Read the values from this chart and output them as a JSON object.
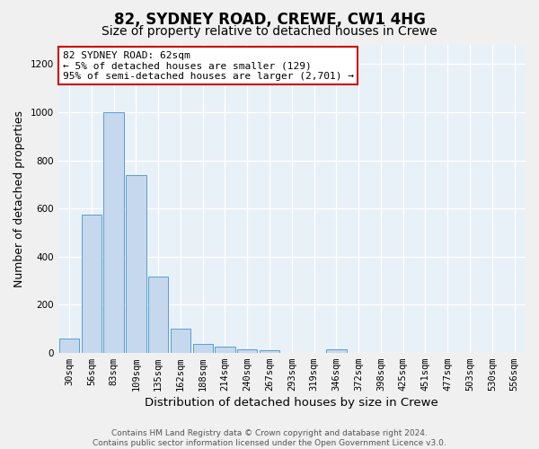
{
  "title": "82, SYDNEY ROAD, CREWE, CW1 4HG",
  "subtitle": "Size of property relative to detached houses in Crewe",
  "xlabel": "Distribution of detached houses by size in Crewe",
  "ylabel": "Number of detached properties",
  "bar_color": "#c5d8ed",
  "bar_edge_color": "#5a9ecf",
  "categories": [
    "30sqm",
    "56sqm",
    "83sqm",
    "109sqm",
    "135sqm",
    "162sqm",
    "188sqm",
    "214sqm",
    "240sqm",
    "267sqm",
    "293sqm",
    "319sqm",
    "346sqm",
    "372sqm",
    "398sqm",
    "425sqm",
    "451sqm",
    "477sqm",
    "503sqm",
    "530sqm",
    "556sqm"
  ],
  "values": [
    60,
    575,
    1000,
    740,
    315,
    100,
    38,
    25,
    15,
    10,
    0,
    0,
    15,
    0,
    0,
    0,
    0,
    0,
    0,
    0,
    0
  ],
  "ylim": [
    0,
    1280
  ],
  "yticks": [
    0,
    200,
    400,
    600,
    800,
    1000,
    1200
  ],
  "annotation_text": "82 SYDNEY ROAD: 62sqm\n← 5% of detached houses are smaller (129)\n95% of semi-detached houses are larger (2,701) →",
  "annotation_box_color": "#ffffff",
  "annotation_box_edge_color": "#cc0000",
  "bg_color": "#e8f0f8",
  "grid_color": "#ffffff",
  "footer_text": "Contains HM Land Registry data © Crown copyright and database right 2024.\nContains public sector information licensed under the Open Government Licence v3.0.",
  "title_fontsize": 12,
  "subtitle_fontsize": 10,
  "axis_label_fontsize": 9,
  "tick_fontsize": 7.5,
  "footer_fontsize": 6.5
}
